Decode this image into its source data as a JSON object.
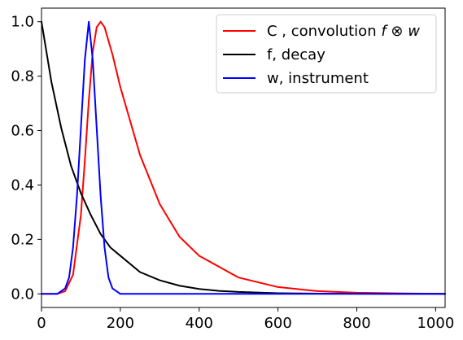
{
  "chart_data": {
    "type": "line",
    "xlim": [
      0,
      1024
    ],
    "ylim": [
      -0.05,
      1.05
    ],
    "x_ticks": [
      {
        "value": 0,
        "label": "0"
      },
      {
        "value": 200,
        "label": "200"
      },
      {
        "value": 400,
        "label": "400"
      },
      {
        "value": 600,
        "label": "600"
      },
      {
        "value": 800,
        "label": "800"
      },
      {
        "value": 1000,
        "label": "1000"
      }
    ],
    "y_ticks": [
      {
        "value": 0.0,
        "label": "0.0"
      },
      {
        "value": 0.2,
        "label": "0.2"
      },
      {
        "value": 0.4,
        "label": "0.4"
      },
      {
        "value": 0.6,
        "label": "0.6"
      },
      {
        "value": 0.8,
        "label": "0.8"
      },
      {
        "value": 1.0,
        "label": "1.0"
      }
    ],
    "grid": false,
    "legend_position": "top-right",
    "series": [
      {
        "name": "C , convolution f ⊗ w",
        "legend_prefix": "C , convolution ",
        "legend_math": "f ⊗ w",
        "color": "#ff0000",
        "x": [
          0,
          40,
          60,
          80,
          100,
          110,
          120,
          130,
          140,
          150,
          160,
          180,
          200,
          250,
          300,
          350,
          400,
          500,
          600,
          700,
          800,
          900,
          1024
        ],
        "y": [
          0.0,
          0.0,
          0.01,
          0.07,
          0.29,
          0.49,
          0.71,
          0.89,
          0.98,
          1.0,
          0.98,
          0.88,
          0.76,
          0.51,
          0.33,
          0.21,
          0.14,
          0.06,
          0.025,
          0.01,
          0.004,
          0.002,
          0.0
        ]
      },
      {
        "name": "f, decay",
        "legend_prefix": "f, decay",
        "legend_math": "",
        "color": "#000000",
        "x": [
          0,
          25,
          50,
          75,
          100,
          125,
          150,
          175,
          200,
          250,
          300,
          350,
          400,
          450,
          500,
          600,
          700,
          800,
          900,
          1024
        ],
        "y": [
          1.0,
          0.78,
          0.61,
          0.47,
          0.37,
          0.29,
          0.22,
          0.17,
          0.14,
          0.08,
          0.05,
          0.03,
          0.018,
          0.011,
          0.007,
          0.0025,
          0.001,
          0.0003,
          0.0001,
          0.0
        ]
      },
      {
        "name": "w, instrument",
        "legend_prefix": "w, instrument",
        "legend_math": "",
        "color": "#0000ff",
        "x": [
          0,
          40,
          60,
          70,
          80,
          90,
          100,
          110,
          120,
          130,
          140,
          150,
          160,
          170,
          180,
          200,
          1024
        ],
        "y": [
          0.0,
          0.0,
          0.02,
          0.06,
          0.17,
          0.36,
          0.61,
          0.86,
          1.0,
          0.86,
          0.61,
          0.36,
          0.17,
          0.06,
          0.02,
          0.0,
          0.0
        ]
      }
    ]
  }
}
